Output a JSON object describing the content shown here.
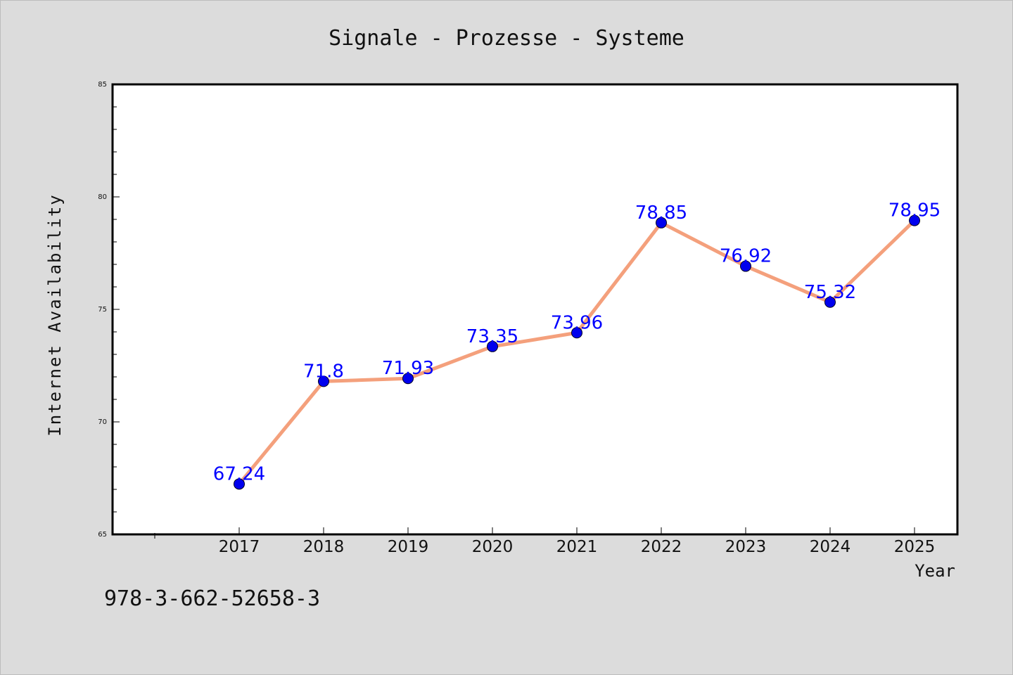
{
  "chart_data": {
    "type": "line",
    "title": "Signale - Prozesse - Systeme",
    "xlabel": "Year",
    "ylabel": "Internet Availability",
    "categories": [
      "2017",
      "2018",
      "2019",
      "2020",
      "2021",
      "2022",
      "2023",
      "2024",
      "2025"
    ],
    "values": [
      67.24,
      71.8,
      71.93,
      73.35,
      73.96,
      78.85,
      76.92,
      75.32,
      78.95
    ],
    "data_labels": [
      "67.24",
      "71.8",
      "71.93",
      "73.35",
      "73.96",
      "78.85",
      "76.92",
      "75.32",
      "78.95"
    ],
    "ylim": [
      65,
      85
    ],
    "yticks": [
      65,
      70,
      75,
      80,
      85
    ],
    "grid": false,
    "legend": "none",
    "colors": {
      "line": "#f4a07c",
      "marker": "#0000ee",
      "data_label": "#0000ff",
      "plot_background": "#ffffff",
      "page_background": "#dcdcdc"
    }
  },
  "footer": {
    "code": "978-3-662-52658-3"
  }
}
